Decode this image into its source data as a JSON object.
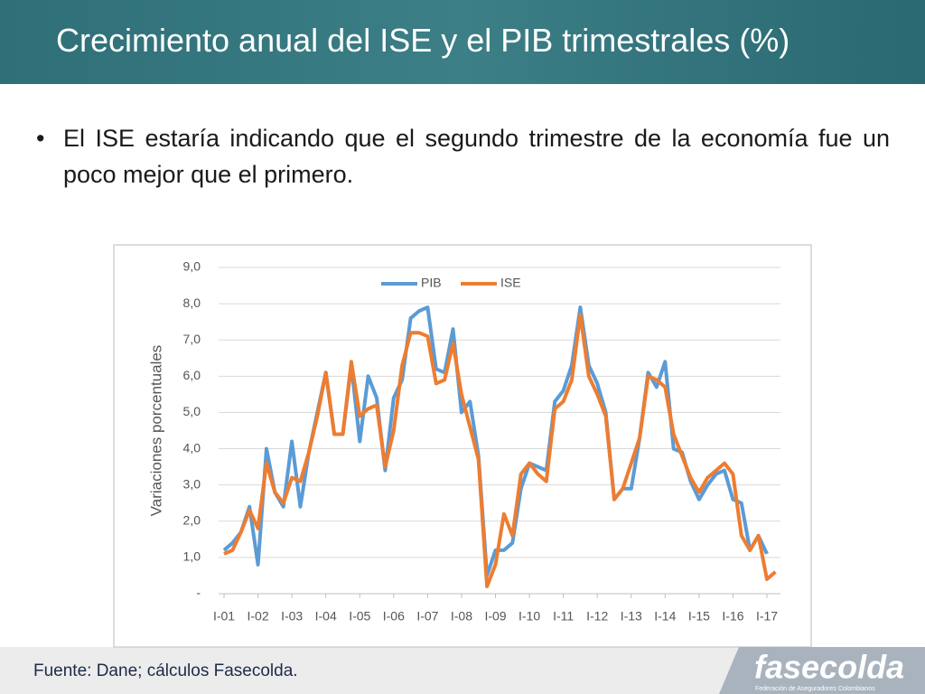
{
  "header": {
    "title": "Crecimiento anual del ISE y el PIB trimestrales (%)"
  },
  "bullet": "El ISE estaría indicando que el segundo trimestre de la economía fue un poco mejor que el primero.",
  "chart_data": {
    "type": "line",
    "ylabel": "Variaciones porcentuales",
    "categories": [
      "I-01",
      null,
      null,
      null,
      "I-02",
      null,
      null,
      null,
      "I-03",
      null,
      null,
      null,
      "I-04",
      null,
      null,
      null,
      "I-05",
      null,
      null,
      null,
      "I-06",
      null,
      null,
      null,
      "I-07",
      null,
      null,
      null,
      "I-08",
      null,
      null,
      null,
      "I-09",
      null,
      null,
      null,
      "I-10",
      null,
      null,
      null,
      "I-11",
      null,
      null,
      null,
      "I-12",
      null,
      null,
      null,
      "I-13",
      null,
      null,
      null,
      "I-14",
      null,
      null,
      null,
      "I-15",
      null,
      null,
      null,
      "I-16",
      null,
      null,
      null,
      "I-17",
      null
    ],
    "series": [
      {
        "name": "PIB",
        "color": "#5b9bd5",
        "values": [
          1.2,
          1.4,
          1.7,
          2.4,
          0.8,
          4.0,
          2.8,
          2.4,
          4.2,
          2.4,
          3.9,
          5.0,
          6.1,
          4.4,
          4.4,
          6.3,
          4.2,
          6.0,
          5.4,
          3.4,
          5.4,
          5.9,
          7.6,
          7.8,
          7.9,
          6.2,
          6.1,
          7.3,
          5.0,
          5.3,
          3.8,
          0.5,
          1.2,
          1.2,
          1.4,
          2.9,
          3.6,
          3.5,
          3.4,
          5.3,
          5.6,
          6.3,
          7.9,
          6.3,
          5.8,
          5.0,
          2.6,
          2.9,
          2.9,
          4.3,
          6.1,
          5.7,
          6.4,
          4.0,
          3.9,
          3.1,
          2.6,
          3.0,
          3.3,
          3.4,
          2.6,
          2.5,
          1.2,
          1.6,
          1.1,
          null
        ]
      },
      {
        "name": "ISE",
        "color": "#ed7d31",
        "values": [
          1.1,
          1.2,
          1.7,
          2.3,
          1.8,
          3.6,
          2.8,
          2.5,
          3.2,
          3.1,
          3.9,
          4.9,
          6.1,
          4.4,
          4.4,
          6.4,
          4.9,
          5.1,
          5.2,
          3.5,
          4.5,
          6.3,
          7.2,
          7.2,
          7.1,
          5.8,
          5.9,
          6.9,
          5.5,
          4.6,
          3.7,
          0.2,
          0.8,
          2.2,
          1.6,
          3.3,
          3.6,
          3.3,
          3.1,
          5.1,
          5.3,
          5.9,
          7.7,
          6.0,
          5.5,
          4.9,
          2.6,
          2.9,
          3.6,
          4.3,
          6.0,
          5.9,
          5.7,
          4.4,
          3.8,
          3.2,
          2.8,
          3.2,
          3.4,
          3.6,
          3.3,
          1.6,
          1.2,
          1.6,
          0.4,
          0.6
        ]
      }
    ],
    "ylim": [
      0,
      9
    ],
    "yticks": [
      {
        "value": 0,
        "label": "-"
      },
      {
        "value": 1,
        "label": "1,0"
      },
      {
        "value": 2,
        "label": "2,0"
      },
      {
        "value": 3,
        "label": "3,0"
      },
      {
        "value": 4,
        "label": "4,0"
      },
      {
        "value": 5,
        "label": "5,0"
      },
      {
        "value": 6,
        "label": "6,0"
      },
      {
        "value": 7,
        "label": "7,0"
      },
      {
        "value": 8,
        "label": "8,0"
      },
      {
        "value": 9,
        "label": "9,0"
      }
    ],
    "grid": true,
    "legend": "top"
  },
  "footer": {
    "source": "Fuente: Dane; cálculos Fasecolda.",
    "logo": "fasecolda",
    "logo_subtitle": "Federación de Aseguradores Colombianos"
  }
}
